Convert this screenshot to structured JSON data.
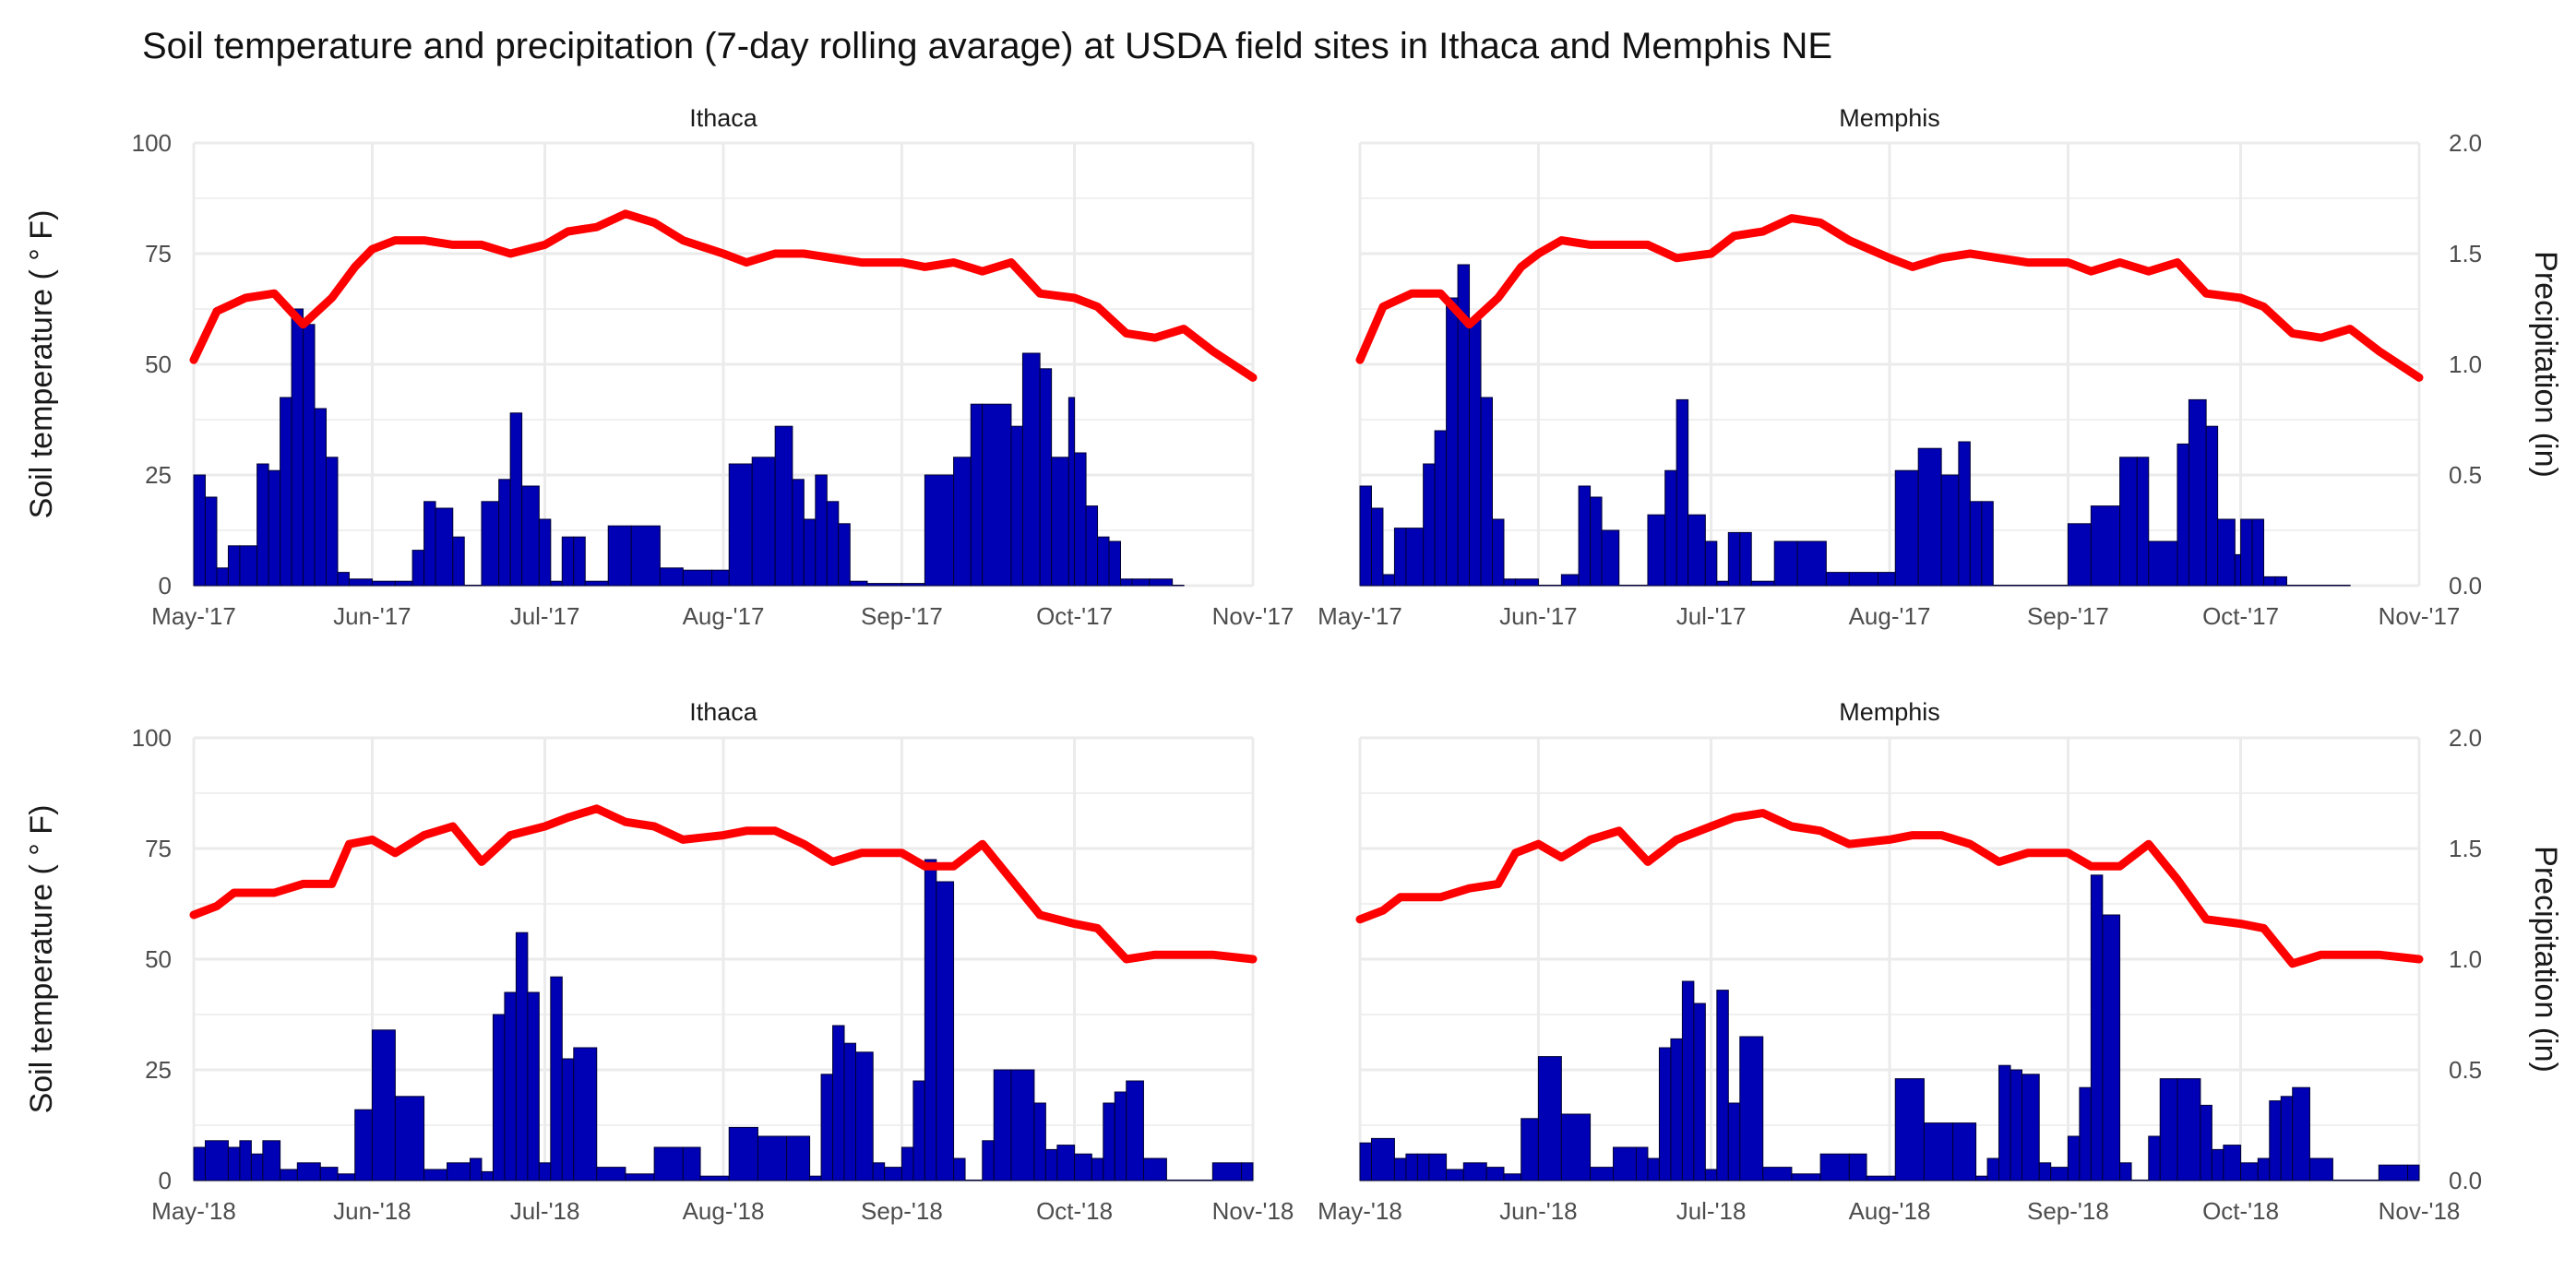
{
  "title": "Soil temperature and precipitation (7-day rolling avarage) at USDA field sites in Ithaca and Memphis NE",
  "colors": {
    "temperature_line": "#FF0000",
    "precip_bars": "#0000B4",
    "bar_outline": "#000033",
    "grid": "#EBEBEB"
  },
  "chart_data": [
    {
      "type": "bar",
      "panel": "Ithaca",
      "year": 2017,
      "title": "Ithaca",
      "ylabel": "Soil temperature ( ° F)",
      "y2label": "Precipitation (in)",
      "x_ticks": [
        "May-'17",
        "Jun-'17",
        "Jul-'17",
        "Aug-'17",
        "Sep-'17",
        "Oct-'17",
        "Nov-'17"
      ],
      "y_ticks": [
        "0",
        "25",
        "50",
        "75",
        "100"
      ],
      "y2_ticks": [
        "0.0",
        "0.5",
        "1.0",
        "1.5",
        "2.0"
      ],
      "ylim": [
        0,
        100
      ],
      "y2lim": [
        0,
        2
      ],
      "x_range": [
        "2017-05-01",
        "2017-11-01"
      ],
      "grid": true,
      "temperature_series": {
        "name": "Soil temperature",
        "x": [
          "2017-05-01",
          "2017-05-05",
          "2017-05-10",
          "2017-05-15",
          "2017-05-20",
          "2017-05-25",
          "2017-05-29",
          "2017-06-01",
          "2017-06-05",
          "2017-06-10",
          "2017-06-15",
          "2017-06-20",
          "2017-06-25",
          "2017-07-01",
          "2017-07-05",
          "2017-07-10",
          "2017-07-15",
          "2017-07-20",
          "2017-07-25",
          "2017-08-01",
          "2017-08-05",
          "2017-08-10",
          "2017-08-15",
          "2017-08-20",
          "2017-08-25",
          "2017-09-01",
          "2017-09-05",
          "2017-09-10",
          "2017-09-15",
          "2017-09-20",
          "2017-09-25",
          "2017-10-01",
          "2017-10-05",
          "2017-10-10",
          "2017-10-15",
          "2017-10-20",
          "2017-10-25",
          "2017-11-01"
        ],
        "y": [
          51,
          62,
          65,
          66,
          59,
          65,
          72,
          76,
          78,
          78,
          77,
          77,
          75,
          77,
          80,
          81,
          84,
          82,
          78,
          75,
          73,
          75,
          75,
          74,
          73,
          73,
          72,
          73,
          71,
          73,
          66,
          65,
          63,
          57,
          56,
          58,
          53,
          47
        ]
      },
      "precip_series": {
        "name": "Precipitation",
        "x": [
          "2017-05-01",
          "2017-05-03",
          "2017-05-05",
          "2017-05-07",
          "2017-05-09",
          "2017-05-12",
          "2017-05-14",
          "2017-05-16",
          "2017-05-18",
          "2017-05-20",
          "2017-05-22",
          "2017-05-24",
          "2017-05-26",
          "2017-05-28",
          "2017-06-01",
          "2017-06-05",
          "2017-06-08",
          "2017-06-10",
          "2017-06-12",
          "2017-06-15",
          "2017-06-17",
          "2017-06-20",
          "2017-06-23",
          "2017-06-25",
          "2017-06-27",
          "2017-06-30",
          "2017-07-02",
          "2017-07-04",
          "2017-07-06",
          "2017-07-08",
          "2017-07-12",
          "2017-07-16",
          "2017-07-21",
          "2017-07-25",
          "2017-07-30",
          "2017-08-02",
          "2017-08-06",
          "2017-08-10",
          "2017-08-13",
          "2017-08-15",
          "2017-08-17",
          "2017-08-19",
          "2017-08-21",
          "2017-08-23",
          "2017-08-26",
          "2017-09-01",
          "2017-09-05",
          "2017-09-10",
          "2017-09-13",
          "2017-09-15",
          "2017-09-20",
          "2017-09-22",
          "2017-09-25",
          "2017-09-27",
          "2017-09-30",
          "2017-10-01",
          "2017-10-03",
          "2017-10-05",
          "2017-10-07",
          "2017-10-09",
          "2017-10-11",
          "2017-10-14",
          "2017-10-18"
        ],
        "y": [
          0.5,
          0.4,
          0.08,
          0.18,
          0.18,
          0.55,
          0.52,
          0.85,
          1.25,
          1.18,
          0.8,
          0.58,
          0.06,
          0.03,
          0.02,
          0.02,
          0.16,
          0.38,
          0.35,
          0.22,
          0.0,
          0.38,
          0.48,
          0.78,
          0.45,
          0.3,
          0.02,
          0.22,
          0.22,
          0.02,
          0.27,
          0.27,
          0.08,
          0.07,
          0.07,
          0.55,
          0.58,
          0.72,
          0.48,
          0.3,
          0.5,
          0.38,
          0.28,
          0.02,
          0.01,
          0.01,
          0.5,
          0.58,
          0.82,
          0.82,
          0.72,
          1.05,
          0.98,
          0.58,
          0.85,
          0.6,
          0.36,
          0.22,
          0.2,
          0.03,
          0.03,
          0.03,
          0.0
        ]
      }
    },
    {
      "type": "bar",
      "panel": "Memphis",
      "year": 2017,
      "title": "Memphis",
      "ylabel": "",
      "y2label": "Precipitation (in)",
      "x_ticks": [
        "May-'17",
        "Jun-'17",
        "Jul-'17",
        "Aug-'17",
        "Sep-'17",
        "Oct-'17",
        "Nov-'17"
      ],
      "y_ticks": [
        "0",
        "25",
        "50",
        "75",
        "100"
      ],
      "y2_ticks": [
        "0.0",
        "0.5",
        "1.0",
        "1.5",
        "2.0"
      ],
      "ylim": [
        0,
        100
      ],
      "y2lim": [
        0,
        2
      ],
      "x_range": [
        "2017-05-01",
        "2017-11-01"
      ],
      "grid": true,
      "temperature_series": {
        "name": "Soil temperature",
        "x": [
          "2017-05-01",
          "2017-05-05",
          "2017-05-10",
          "2017-05-15",
          "2017-05-20",
          "2017-05-25",
          "2017-05-29",
          "2017-06-01",
          "2017-06-05",
          "2017-06-10",
          "2017-06-15",
          "2017-06-20",
          "2017-06-25",
          "2017-07-01",
          "2017-07-05",
          "2017-07-10",
          "2017-07-15",
          "2017-07-20",
          "2017-07-25",
          "2017-08-01",
          "2017-08-05",
          "2017-08-10",
          "2017-08-15",
          "2017-08-20",
          "2017-08-25",
          "2017-09-01",
          "2017-09-05",
          "2017-09-10",
          "2017-09-15",
          "2017-09-20",
          "2017-09-25",
          "2017-10-01",
          "2017-10-05",
          "2017-10-10",
          "2017-10-15",
          "2017-10-20",
          "2017-10-25",
          "2017-11-01"
        ],
        "y": [
          51,
          63,
          66,
          66,
          59,
          65,
          72,
          75,
          78,
          77,
          77,
          77,
          74,
          75,
          79,
          80,
          83,
          82,
          78,
          74,
          72,
          74,
          75,
          74,
          73,
          73,
          71,
          73,
          71,
          73,
          66,
          65,
          63,
          57,
          56,
          58,
          53,
          47
        ]
      },
      "precip_series": {
        "name": "Precipitation",
        "x": [
          "2017-05-01",
          "2017-05-03",
          "2017-05-05",
          "2017-05-07",
          "2017-05-09",
          "2017-05-12",
          "2017-05-14",
          "2017-05-16",
          "2017-05-18",
          "2017-05-20",
          "2017-05-22",
          "2017-05-24",
          "2017-05-26",
          "2017-05-28",
          "2017-06-01",
          "2017-06-05",
          "2017-06-08",
          "2017-06-10",
          "2017-06-12",
          "2017-06-15",
          "2017-06-17",
          "2017-06-20",
          "2017-06-23",
          "2017-06-25",
          "2017-06-27",
          "2017-06-30",
          "2017-07-02",
          "2017-07-04",
          "2017-07-06",
          "2017-07-08",
          "2017-07-12",
          "2017-07-16",
          "2017-07-21",
          "2017-07-25",
          "2017-07-30",
          "2017-08-02",
          "2017-08-06",
          "2017-08-10",
          "2017-08-13",
          "2017-08-15",
          "2017-08-17",
          "2017-08-19",
          "2017-08-21",
          "2017-08-23",
          "2017-08-26",
          "2017-09-01",
          "2017-09-05",
          "2017-09-10",
          "2017-09-13",
          "2017-09-15",
          "2017-09-20",
          "2017-09-22",
          "2017-09-25",
          "2017-09-27",
          "2017-09-30",
          "2017-10-01",
          "2017-10-03",
          "2017-10-05",
          "2017-10-07",
          "2017-10-09",
          "2017-10-11",
          "2017-10-14",
          "2017-10-18"
        ],
        "y": [
          0.45,
          0.35,
          0.05,
          0.26,
          0.26,
          0.55,
          0.7,
          1.3,
          1.45,
          1.2,
          0.85,
          0.3,
          0.03,
          0.03,
          0.0,
          0.05,
          0.45,
          0.4,
          0.25,
          0.0,
          0.0,
          0.32,
          0.52,
          0.84,
          0.32,
          0.2,
          0.02,
          0.24,
          0.24,
          0.02,
          0.2,
          0.2,
          0.06,
          0.06,
          0.06,
          0.52,
          0.62,
          0.5,
          0.65,
          0.38,
          0.38,
          0.0,
          0.0,
          0.0,
          0.0,
          0.28,
          0.36,
          0.58,
          0.58,
          0.2,
          0.64,
          0.84,
          0.72,
          0.3,
          0.14,
          0.3,
          0.3,
          0.04,
          0.04,
          0.0,
          0.0,
          0.0,
          0.0
        ]
      }
    },
    {
      "type": "bar",
      "panel": "Ithaca",
      "year": 2018,
      "title": "Ithaca",
      "ylabel": "Soil temperature ( ° F)",
      "y2label": "Precipitation (in)",
      "x_ticks": [
        "May-'18",
        "Jun-'18",
        "Jul-'18",
        "Aug-'18",
        "Sep-'18",
        "Oct-'18",
        "Nov-'18"
      ],
      "y_ticks": [
        "0",
        "25",
        "50",
        "75",
        "100"
      ],
      "y2_ticks": [
        "0.0",
        "0.5",
        "1.0",
        "1.5",
        "2.0"
      ],
      "ylim": [
        0,
        100
      ],
      "y2lim": [
        0,
        2
      ],
      "x_range": [
        "2018-05-01",
        "2018-11-01"
      ],
      "grid": true,
      "temperature_series": {
        "name": "Soil temperature",
        "x": [
          "2018-05-01",
          "2018-05-05",
          "2018-05-08",
          "2018-05-15",
          "2018-05-20",
          "2018-05-25",
          "2018-05-28",
          "2018-06-01",
          "2018-06-05",
          "2018-06-10",
          "2018-06-15",
          "2018-06-20",
          "2018-06-25",
          "2018-07-01",
          "2018-07-05",
          "2018-07-10",
          "2018-07-15",
          "2018-07-20",
          "2018-07-25",
          "2018-08-01",
          "2018-08-05",
          "2018-08-10",
          "2018-08-15",
          "2018-08-20",
          "2018-08-25",
          "2018-09-01",
          "2018-09-05",
          "2018-09-10",
          "2018-09-15",
          "2018-09-20",
          "2018-09-25",
          "2018-10-01",
          "2018-10-05",
          "2018-10-10",
          "2018-10-15",
          "2018-10-20",
          "2018-10-25",
          "2018-11-01"
        ],
        "y": [
          60,
          62,
          65,
          65,
          67,
          67,
          76,
          77,
          74,
          78,
          80,
          72,
          78,
          80,
          82,
          84,
          81,
          80,
          77,
          78,
          79,
          79,
          76,
          72,
          74,
          74,
          71,
          71,
          76,
          68,
          60,
          58,
          57,
          50,
          51,
          51,
          51,
          50
        ]
      },
      "precip_series": {
        "name": "Precipitation",
        "x": [
          "2018-05-01",
          "2018-05-03",
          "2018-05-07",
          "2018-05-09",
          "2018-05-11",
          "2018-05-13",
          "2018-05-16",
          "2018-05-19",
          "2018-05-23",
          "2018-05-26",
          "2018-05-29",
          "2018-06-01",
          "2018-06-05",
          "2018-06-10",
          "2018-06-14",
          "2018-06-18",
          "2018-06-20",
          "2018-06-22",
          "2018-06-24",
          "2018-06-26",
          "2018-06-28",
          "2018-06-30",
          "2018-07-02",
          "2018-07-04",
          "2018-07-06",
          "2018-07-10",
          "2018-07-15",
          "2018-07-20",
          "2018-07-25",
          "2018-07-28",
          "2018-08-02",
          "2018-08-07",
          "2018-08-12",
          "2018-08-16",
          "2018-08-18",
          "2018-08-20",
          "2018-08-22",
          "2018-08-24",
          "2018-08-27",
          "2018-08-29",
          "2018-09-01",
          "2018-09-03",
          "2018-09-05",
          "2018-09-07",
          "2018-09-10",
          "2018-09-12",
          "2018-09-15",
          "2018-09-17",
          "2018-09-20",
          "2018-09-24",
          "2018-09-26",
          "2018-09-28",
          "2018-10-01",
          "2018-10-04",
          "2018-10-06",
          "2018-10-08",
          "2018-10-10",
          "2018-10-13",
          "2018-10-17",
          "2018-10-25",
          "2018-10-30"
        ],
        "y": [
          0.15,
          0.18,
          0.15,
          0.18,
          0.12,
          0.18,
          0.05,
          0.08,
          0.06,
          0.03,
          0.32,
          0.68,
          0.38,
          0.05,
          0.08,
          0.1,
          0.04,
          0.75,
          0.85,
          1.12,
          0.85,
          0.08,
          0.92,
          0.55,
          0.6,
          0.06,
          0.03,
          0.15,
          0.15,
          0.02,
          0.24,
          0.2,
          0.2,
          0.02,
          0.48,
          0.7,
          0.62,
          0.58,
          0.08,
          0.06,
          0.15,
          0.45,
          1.45,
          1.35,
          0.1,
          0.0,
          0.18,
          0.5,
          0.5,
          0.35,
          0.14,
          0.16,
          0.12,
          0.1,
          0.35,
          0.4,
          0.45,
          0.1,
          0.0,
          0.08,
          0.08
        ]
      }
    },
    {
      "type": "bar",
      "panel": "Memphis",
      "year": 2018,
      "title": "Memphis",
      "ylabel": "",
      "y2label": "Precipitation (in)",
      "x_ticks": [
        "May-'18",
        "Jun-'18",
        "Jul-'18",
        "Aug-'18",
        "Sep-'18",
        "Oct-'18",
        "Nov-'18"
      ],
      "y_ticks": [
        "0",
        "25",
        "50",
        "75",
        "100"
      ],
      "y2_ticks": [
        "0.0",
        "0.5",
        "1.0",
        "1.5",
        "2.0"
      ],
      "ylim": [
        0,
        100
      ],
      "y2lim": [
        0,
        2
      ],
      "x_range": [
        "2018-05-01",
        "2018-11-01"
      ],
      "grid": true,
      "temperature_series": {
        "name": "Soil temperature",
        "x": [
          "2018-05-01",
          "2018-05-05",
          "2018-05-08",
          "2018-05-15",
          "2018-05-20",
          "2018-05-25",
          "2018-05-28",
          "2018-06-01",
          "2018-06-05",
          "2018-06-10",
          "2018-06-15",
          "2018-06-20",
          "2018-06-25",
          "2018-07-01",
          "2018-07-05",
          "2018-07-10",
          "2018-07-15",
          "2018-07-20",
          "2018-07-25",
          "2018-08-01",
          "2018-08-05",
          "2018-08-10",
          "2018-08-15",
          "2018-08-20",
          "2018-08-25",
          "2018-09-01",
          "2018-09-05",
          "2018-09-10",
          "2018-09-15",
          "2018-09-20",
          "2018-09-25",
          "2018-10-01",
          "2018-10-05",
          "2018-10-10",
          "2018-10-15",
          "2018-10-20",
          "2018-10-25",
          "2018-11-01"
        ],
        "y": [
          59,
          61,
          64,
          64,
          66,
          67,
          74,
          76,
          73,
          77,
          79,
          72,
          77,
          80,
          82,
          83,
          80,
          79,
          76,
          77,
          78,
          78,
          76,
          72,
          74,
          74,
          71,
          71,
          76,
          68,
          59,
          58,
          57,
          49,
          51,
          51,
          51,
          50
        ]
      },
      "precip_series": {
        "name": "Precipitation",
        "x": [
          "2018-05-01",
          "2018-05-03",
          "2018-05-07",
          "2018-05-09",
          "2018-05-11",
          "2018-05-13",
          "2018-05-16",
          "2018-05-19",
          "2018-05-23",
          "2018-05-26",
          "2018-05-29",
          "2018-06-01",
          "2018-06-05",
          "2018-06-10",
          "2018-06-14",
          "2018-06-18",
          "2018-06-20",
          "2018-06-22",
          "2018-06-24",
          "2018-06-26",
          "2018-06-28",
          "2018-06-30",
          "2018-07-02",
          "2018-07-04",
          "2018-07-06",
          "2018-07-10",
          "2018-07-15",
          "2018-07-20",
          "2018-07-25",
          "2018-07-28",
          "2018-08-02",
          "2018-08-07",
          "2018-08-12",
          "2018-08-16",
          "2018-08-18",
          "2018-08-20",
          "2018-08-22",
          "2018-08-24",
          "2018-08-27",
          "2018-08-29",
          "2018-09-01",
          "2018-09-03",
          "2018-09-05",
          "2018-09-07",
          "2018-09-10",
          "2018-09-12",
          "2018-09-15",
          "2018-09-17",
          "2018-09-20",
          "2018-09-24",
          "2018-09-26",
          "2018-09-28",
          "2018-10-01",
          "2018-10-04",
          "2018-10-06",
          "2018-10-08",
          "2018-10-10",
          "2018-10-13",
          "2018-10-17",
          "2018-10-25",
          "2018-10-30"
        ],
        "y": [
          0.17,
          0.19,
          0.1,
          0.12,
          0.12,
          0.12,
          0.05,
          0.08,
          0.06,
          0.03,
          0.28,
          0.56,
          0.3,
          0.06,
          0.15,
          0.15,
          0.1,
          0.6,
          0.64,
          0.9,
          0.8,
          0.05,
          0.86,
          0.35,
          0.65,
          0.06,
          0.03,
          0.12,
          0.12,
          0.02,
          0.46,
          0.26,
          0.26,
          0.02,
          0.1,
          0.52,
          0.5,
          0.48,
          0.08,
          0.06,
          0.2,
          0.42,
          1.38,
          1.2,
          0.08,
          0.0,
          0.2,
          0.46,
          0.46,
          0.34,
          0.14,
          0.16,
          0.08,
          0.1,
          0.36,
          0.38,
          0.42,
          0.1,
          0.0,
          0.07,
          0.07
        ]
      }
    }
  ]
}
